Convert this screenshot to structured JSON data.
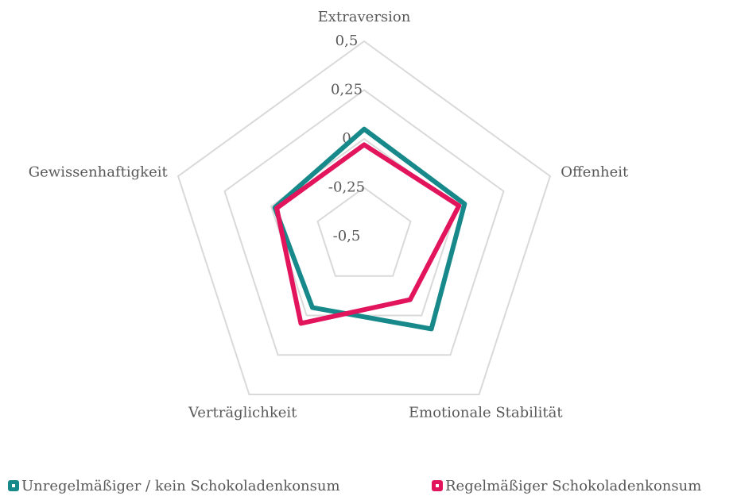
{
  "chart_data": {
    "type": "radar",
    "categories": [
      "Extraversion",
      "Offenheit",
      "Emotionale Stabilität",
      "Verträglichkeit",
      "Gewissenhaftigkeit"
    ],
    "series": [
      {
        "name": "Unregelmäßiger / kein Schokoladenkonsum",
        "color": "#17898a",
        "values": [
          0.05,
          0.04,
          0.085,
          -0.05,
          -0.02
        ]
      },
      {
        "name": "Regelmäßiger Schokoladenkonsum",
        "color": "#e2145c",
        "values": [
          -0.03,
          0.01,
          -0.1,
          0.05,
          -0.03
        ]
      }
    ],
    "ylim": [
      -0.5,
      0.5
    ],
    "yticks": [
      {
        "value": -0.5,
        "label": "-0,5"
      },
      {
        "value": -0.25,
        "label": "-0,25"
      },
      {
        "value": 0,
        "label": "0"
      },
      {
        "value": 0.25,
        "label": "0,25"
      },
      {
        "value": 0.5,
        "label": "0,5"
      }
    ],
    "grid": true,
    "legend": "bottom"
  }
}
